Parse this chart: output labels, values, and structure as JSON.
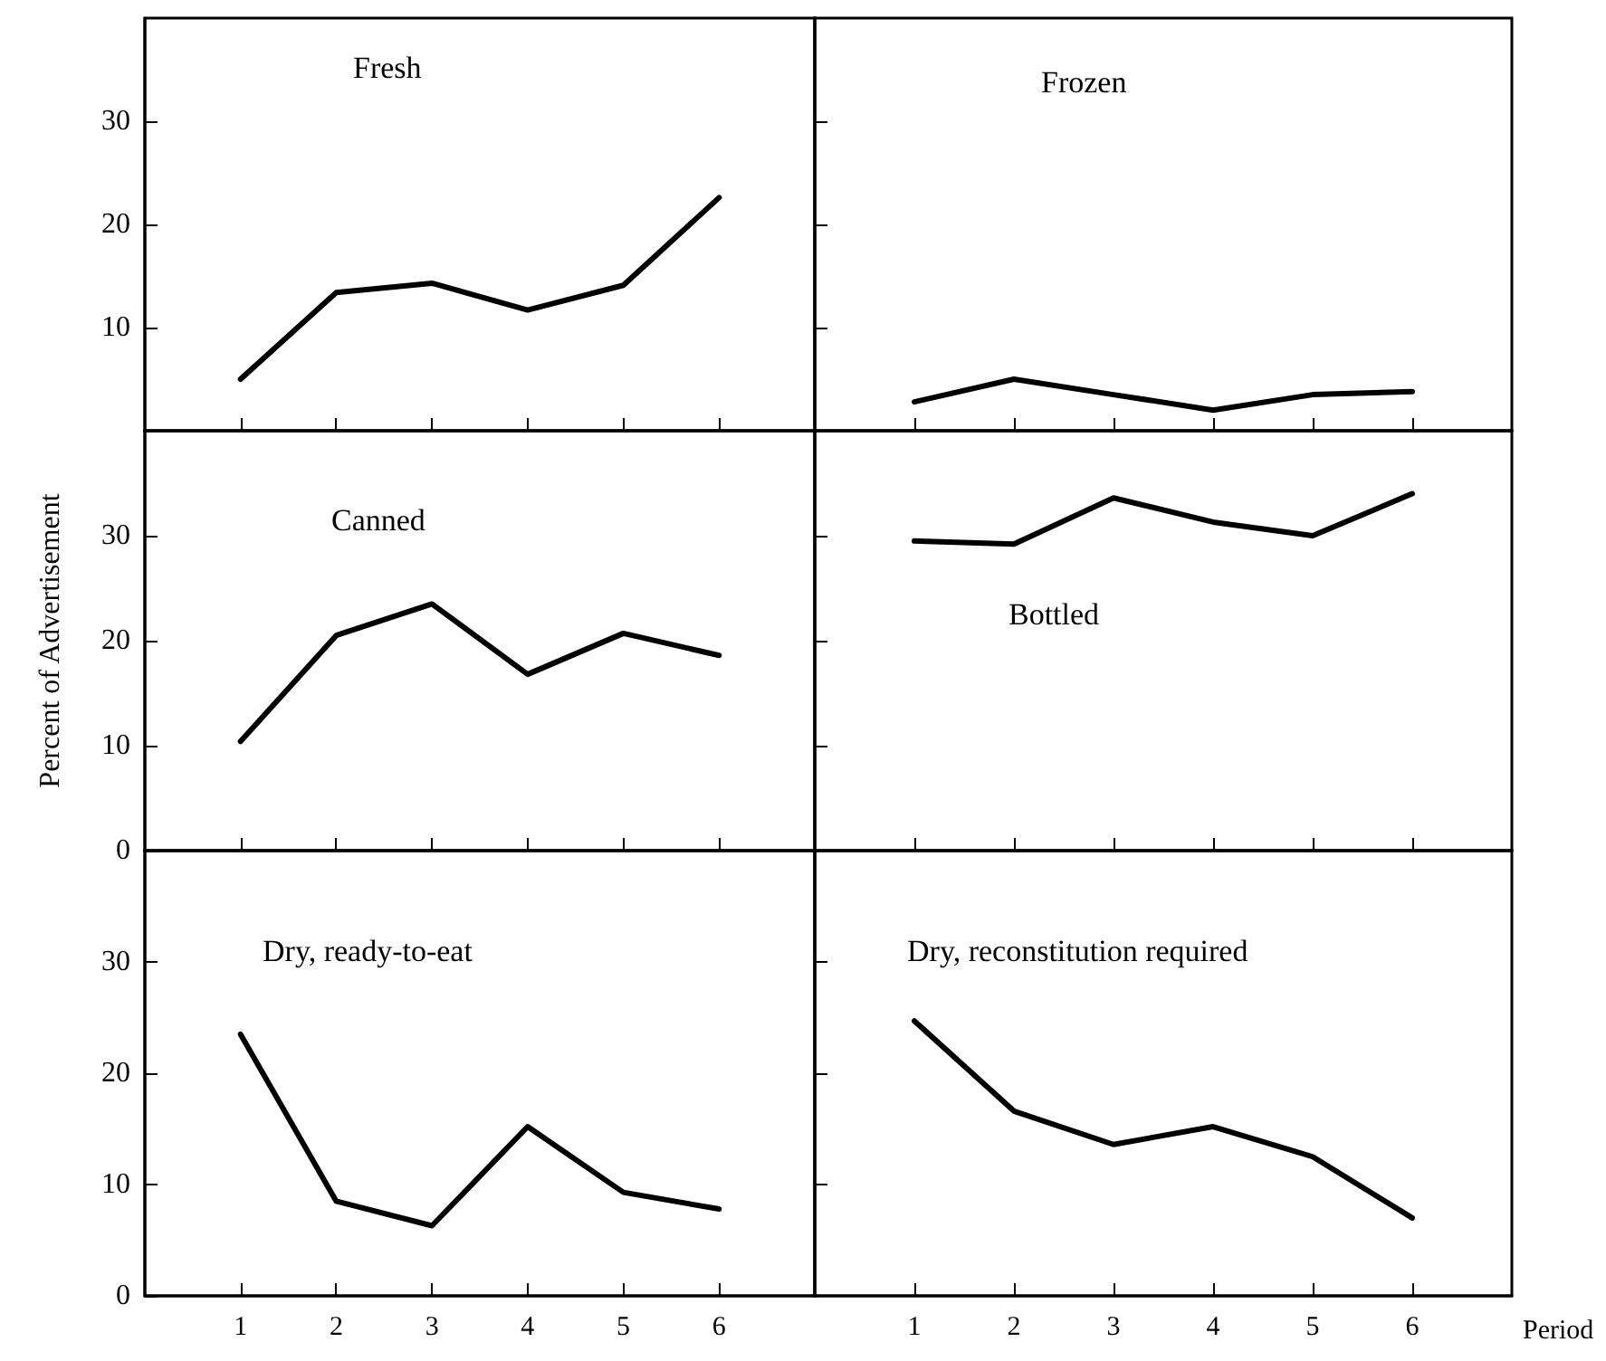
{
  "chart_data": [
    {
      "type": "line",
      "title": "Fresh",
      "x": [
        1,
        2,
        3,
        4,
        5,
        6
      ],
      "values": [
        5,
        13.4,
        14.3,
        11.7,
        14.1,
        22.6
      ],
      "color": "#000000",
      "xlim": [
        0,
        7
      ],
      "xticks": [
        1,
        2,
        3,
        4,
        5,
        6
      ],
      "ylim": [
        0,
        40
      ],
      "yticks": [
        10,
        20,
        30
      ],
      "tick_labels": "y",
      "grid": false,
      "marker": "none"
    },
    {
      "type": "line",
      "title": "Frozen",
      "x": [
        1,
        2,
        3,
        4,
        5,
        6
      ],
      "values": [
        2.8,
        5,
        3.5,
        2,
        3.5,
        3.8
      ],
      "color": "#000000",
      "xlim": [
        0,
        7
      ],
      "xticks": [
        1,
        2,
        3,
        4,
        5,
        6
      ],
      "ylim": [
        0,
        40
      ],
      "yticks": [
        10,
        20,
        30
      ],
      "tick_labels": false,
      "grid": false,
      "marker": "none"
    },
    {
      "type": "line",
      "title": "Canned",
      "ylabel": "Percent of Advertisement",
      "x": [
        1,
        2,
        3,
        4,
        5,
        6
      ],
      "values": [
        10.4,
        20.5,
        23.5,
        16.8,
        20.7,
        18.6
      ],
      "color": "#000000",
      "xlim": [
        0,
        7
      ],
      "xticks": [
        1,
        2,
        3,
        4,
        5,
        6
      ],
      "ylim": [
        0,
        40
      ],
      "yticks": [
        0,
        10,
        20,
        30
      ],
      "tick_labels": "y",
      "grid": false,
      "marker": "none"
    },
    {
      "type": "line",
      "title": "Bottled",
      "x": [
        1,
        2,
        3,
        4,
        5,
        6
      ],
      "values": [
        29.5,
        29.2,
        33.6,
        31.3,
        30,
        34
      ],
      "color": "#000000",
      "xlim": [
        0,
        7
      ],
      "xticks": [
        1,
        2,
        3,
        4,
        5,
        6
      ],
      "ylim": [
        0,
        40
      ],
      "yticks": [
        10,
        20,
        30
      ],
      "tick_labels": false,
      "grid": false,
      "marker": "none"
    },
    {
      "type": "line",
      "title": "Dry, ready-to-eat",
      "x": [
        1,
        2,
        3,
        4,
        5,
        6
      ],
      "values": [
        23.5,
        8.5,
        6.3,
        15.2,
        9.3,
        7.8
      ],
      "color": "#000000",
      "xlim": [
        0,
        7
      ],
      "xticks": [
        1,
        2,
        3,
        4,
        5,
        6
      ],
      "ylim": [
        0,
        40
      ],
      "yticks": [
        0,
        10,
        20,
        30
      ],
      "grid": false,
      "marker": "none"
    },
    {
      "type": "line",
      "title": "Dry, reconstitution required",
      "xlabel": "Period",
      "x": [
        1,
        2,
        3,
        4,
        5,
        6
      ],
      "values": [
        24.7,
        16.6,
        13.6,
        15.2,
        12.5,
        7
      ],
      "color": "#000000",
      "xlim": [
        0,
        7
      ],
      "xticks": [
        1,
        2,
        3,
        4,
        5,
        6
      ],
      "ylim": [
        0,
        40
      ],
      "yticks": [
        10,
        20,
        30
      ],
      "tick_labels": "x",
      "grid": false,
      "marker": "none"
    }
  ]
}
